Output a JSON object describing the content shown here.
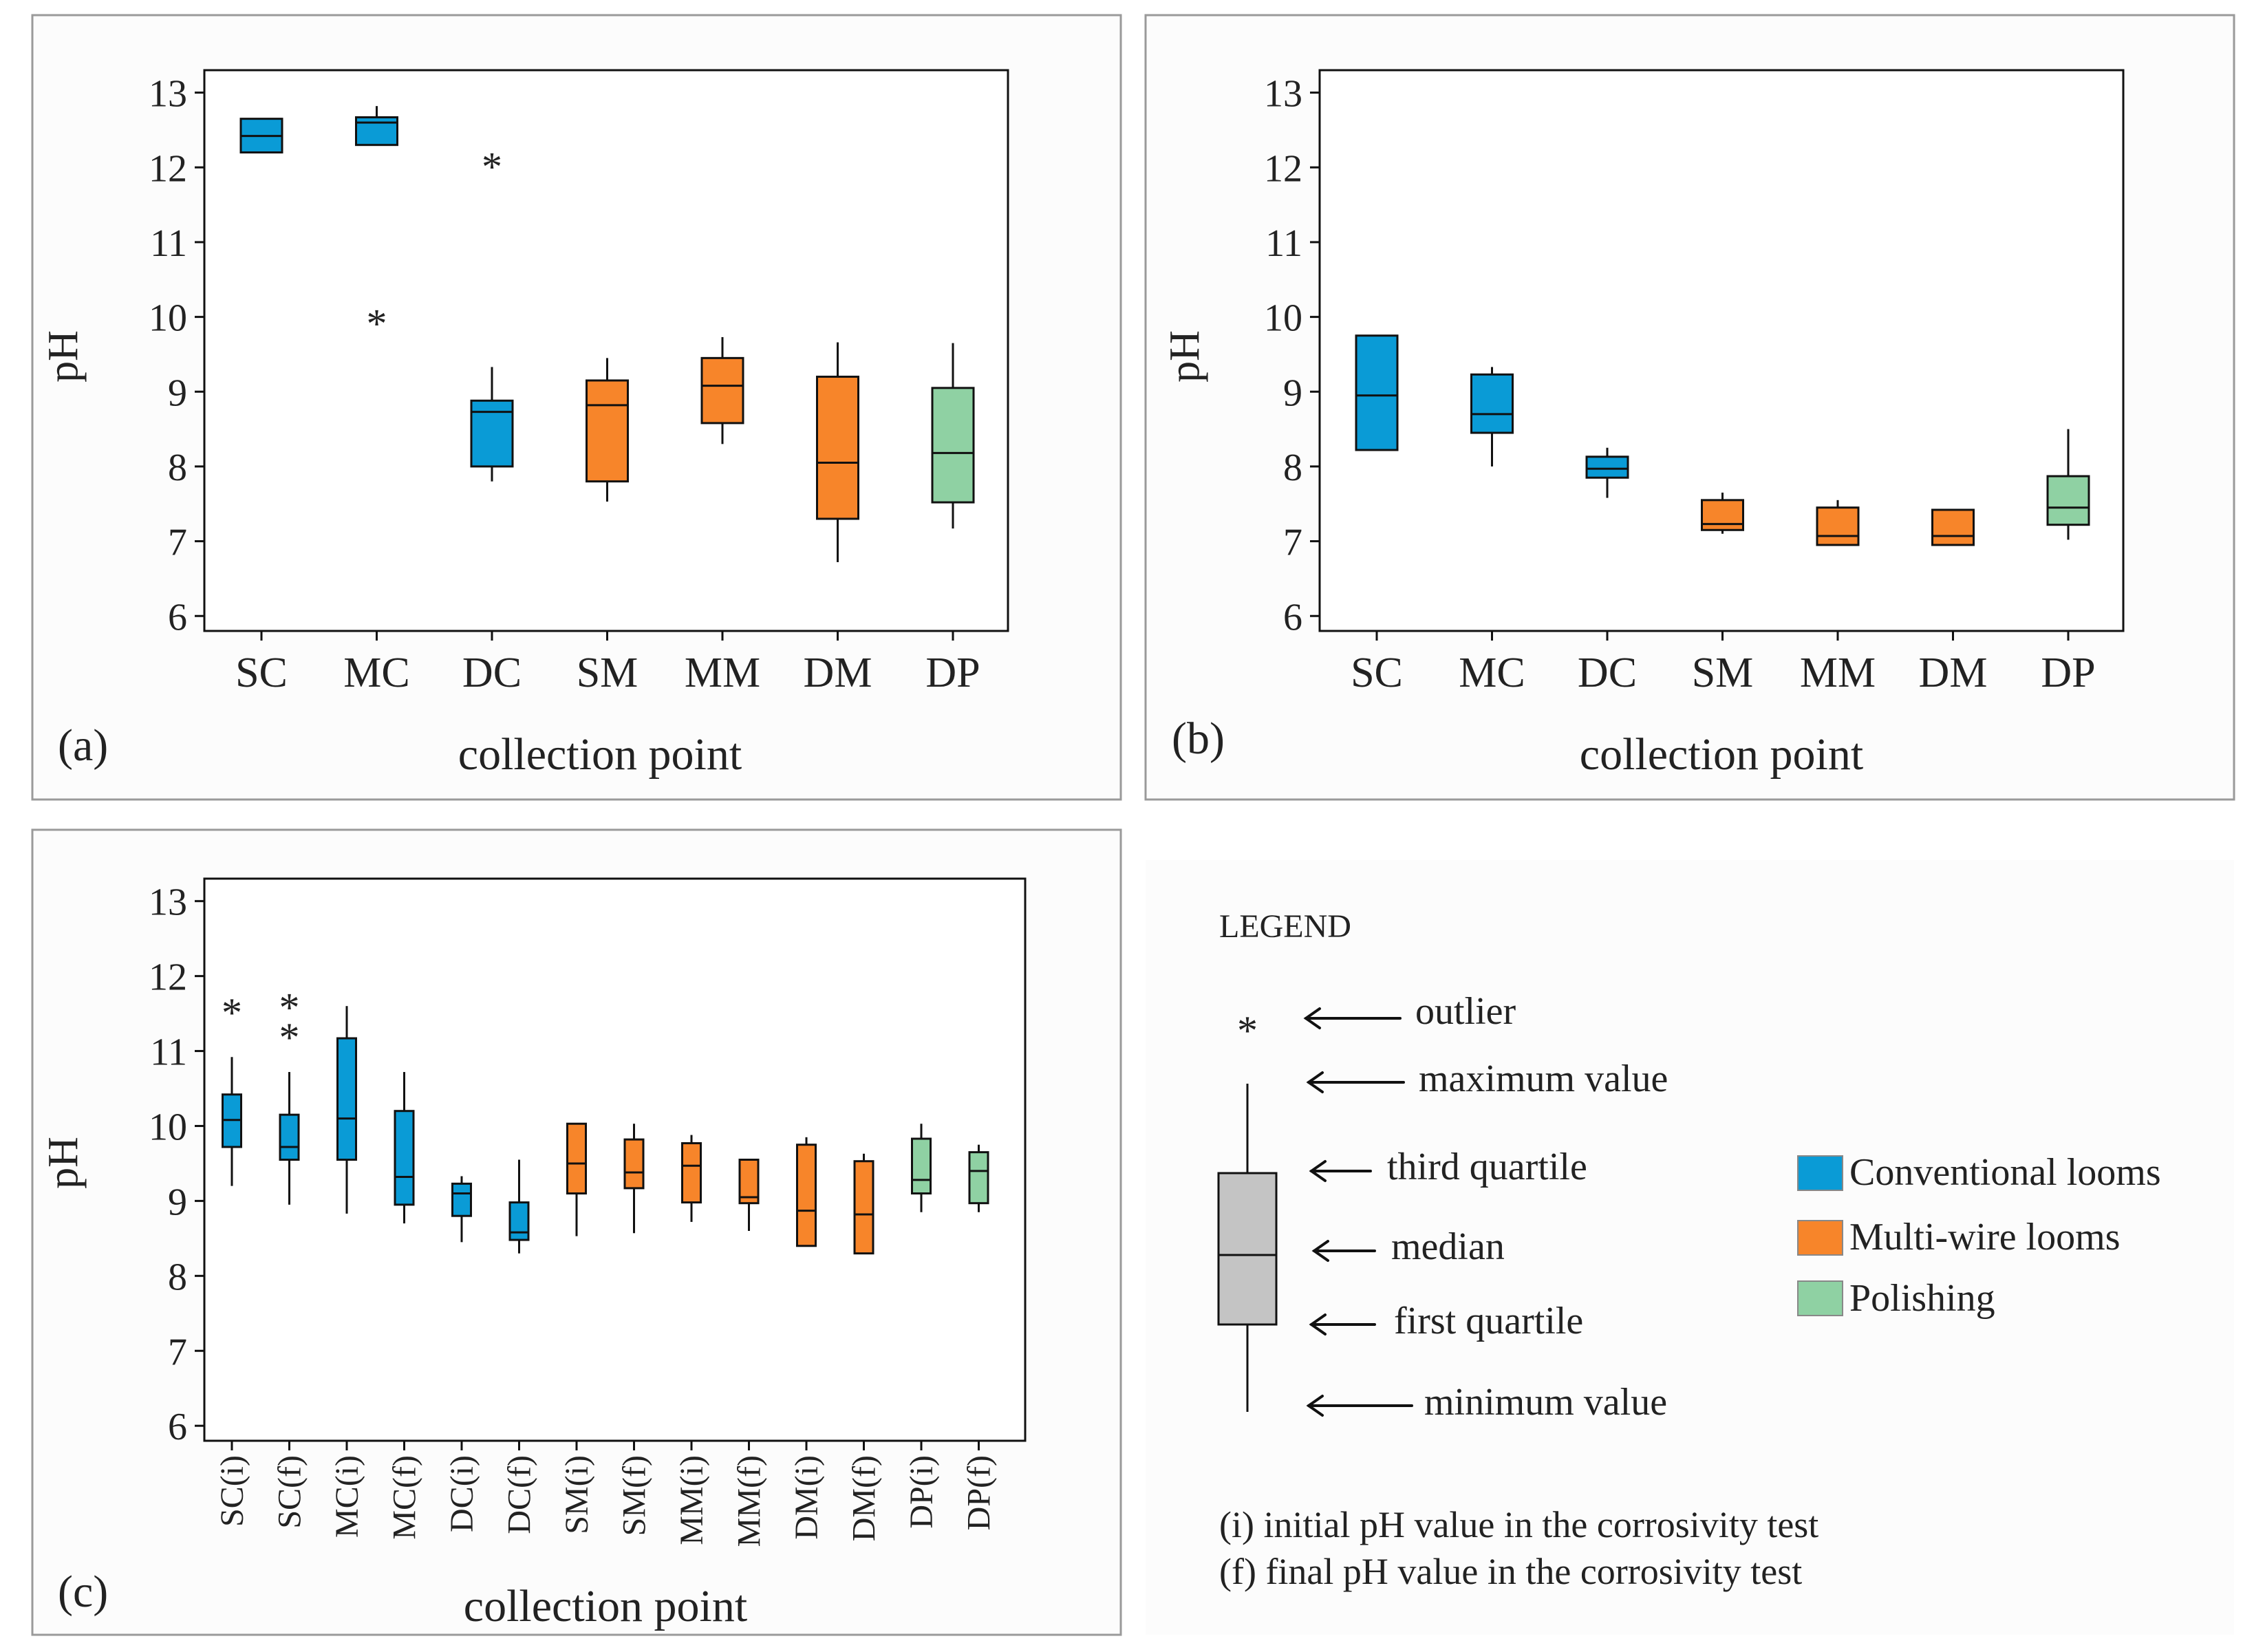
{
  "colors": {
    "conventional": "#0a9bd6",
    "multiwire": "#f7852a",
    "polishing": "#8fd1a3",
    "legend_box": "#c4c4c4",
    "frame": "#9a9a9a"
  },
  "chart_data": [
    {
      "type": "box",
      "panel_label": "(a)",
      "ylabel": "pH",
      "xlabel": "collection point",
      "ylim": [
        5.8,
        13.3
      ],
      "yticks": [
        "6",
        "7",
        "8",
        "9",
        "10",
        "11",
        "12",
        "13"
      ],
      "boxes": [
        {
          "label": "SC",
          "group": "conventional",
          "min": 12.2,
          "q1": 12.2,
          "median": 12.42,
          "q3": 12.65,
          "max": 12.65,
          "outliers": []
        },
        {
          "label": "MC",
          "group": "conventional",
          "min": 12.3,
          "q1": 12.3,
          "median": 12.6,
          "q3": 12.67,
          "max": 12.82,
          "outliers": [
            10.0
          ]
        },
        {
          "label": "DC",
          "group": "conventional",
          "min": 7.8,
          "q1": 8.0,
          "median": 8.73,
          "q3": 8.88,
          "max": 9.33,
          "outliers": [
            12.1
          ]
        },
        {
          "label": "SM",
          "group": "multiwire",
          "min": 7.53,
          "q1": 7.8,
          "median": 8.82,
          "q3": 9.15,
          "max": 9.45,
          "outliers": []
        },
        {
          "label": "MM",
          "group": "multiwire",
          "min": 8.3,
          "q1": 8.58,
          "median": 9.08,
          "q3": 9.45,
          "max": 9.73,
          "outliers": []
        },
        {
          "label": "DM",
          "group": "multiwire",
          "min": 6.72,
          "q1": 7.3,
          "median": 8.05,
          "q3": 9.2,
          "max": 9.66,
          "outliers": []
        },
        {
          "label": "DP",
          "group": "polishing",
          "min": 7.17,
          "q1": 7.52,
          "median": 8.18,
          "q3": 9.05,
          "max": 9.65,
          "outliers": []
        }
      ]
    },
    {
      "type": "box",
      "panel_label": "(b)",
      "ylabel": "pH",
      "xlabel": "collection point",
      "ylim": [
        5.8,
        13.3
      ],
      "yticks": [
        "6",
        "7",
        "8",
        "9",
        "10",
        "11",
        "12",
        "13"
      ],
      "boxes": [
        {
          "label": "SC",
          "group": "conventional",
          "min": 8.22,
          "q1": 8.22,
          "median": 8.95,
          "q3": 9.75,
          "max": 9.75,
          "outliers": []
        },
        {
          "label": "MC",
          "group": "conventional",
          "min": 8.0,
          "q1": 8.45,
          "median": 8.7,
          "q3": 9.23,
          "max": 9.33,
          "outliers": []
        },
        {
          "label": "DC",
          "group": "conventional",
          "min": 7.58,
          "q1": 7.85,
          "median": 7.97,
          "q3": 8.13,
          "max": 8.25,
          "outliers": []
        },
        {
          "label": "SM",
          "group": "multiwire",
          "min": 7.1,
          "q1": 7.15,
          "median": 7.23,
          "q3": 7.55,
          "max": 7.65,
          "outliers": []
        },
        {
          "label": "MM",
          "group": "multiwire",
          "min": 6.95,
          "q1": 6.95,
          "median": 7.07,
          "q3": 7.45,
          "max": 7.55,
          "outliers": []
        },
        {
          "label": "DM",
          "group": "multiwire",
          "min": 6.95,
          "q1": 6.95,
          "median": 7.07,
          "q3": 7.42,
          "max": 7.42,
          "outliers": []
        },
        {
          "label": "DP",
          "group": "polishing",
          "min": 7.02,
          "q1": 7.22,
          "median": 7.45,
          "q3": 7.87,
          "max": 8.5,
          "outliers": []
        }
      ]
    },
    {
      "type": "box",
      "panel_label": "(c)",
      "ylabel": "pH",
      "xlabel": "collection point",
      "ylim": [
        5.8,
        13.3
      ],
      "yticks": [
        "6",
        "7",
        "8",
        "9",
        "10",
        "11",
        "12",
        "13"
      ],
      "boxes": [
        {
          "label": "SC(i)",
          "group": "conventional",
          "min": 9.2,
          "q1": 9.72,
          "median": 10.08,
          "q3": 10.42,
          "max": 10.92,
          "outliers": [
            11.6
          ]
        },
        {
          "label": "SC(f)",
          "group": "conventional",
          "min": 8.95,
          "q1": 9.55,
          "median": 9.72,
          "q3": 10.15,
          "max": 10.72,
          "outliers": [
            11.67,
            11.27
          ]
        },
        {
          "label": "MC(i)",
          "group": "conventional",
          "min": 8.83,
          "q1": 9.55,
          "median": 10.1,
          "q3": 11.17,
          "max": 11.6,
          "outliers": []
        },
        {
          "label": "MC(f)",
          "group": "conventional",
          "min": 8.7,
          "q1": 8.95,
          "median": 9.32,
          "q3": 10.2,
          "max": 10.72,
          "outliers": []
        },
        {
          "label": "DC(i)",
          "group": "conventional",
          "min": 8.45,
          "q1": 8.8,
          "median": 9.1,
          "q3": 9.23,
          "max": 9.33,
          "outliers": []
        },
        {
          "label": "DC(f)",
          "group": "conventional",
          "min": 8.3,
          "q1": 8.48,
          "median": 8.58,
          "q3": 8.98,
          "max": 9.55,
          "outliers": []
        },
        {
          "label": "SM(i)",
          "group": "multiwire",
          "min": 8.53,
          "q1": 9.1,
          "median": 9.5,
          "q3": 10.03,
          "max": 10.03,
          "outliers": []
        },
        {
          "label": "SM(f)",
          "group": "multiwire",
          "min": 8.57,
          "q1": 9.17,
          "median": 9.38,
          "q3": 9.82,
          "max": 10.03,
          "outliers": []
        },
        {
          "label": "MM(i)",
          "group": "multiwire",
          "min": 8.72,
          "q1": 8.98,
          "median": 9.47,
          "q3": 9.77,
          "max": 9.88,
          "outliers": []
        },
        {
          "label": "MM(f)",
          "group": "multiwire",
          "min": 8.6,
          "q1": 8.97,
          "median": 9.05,
          "q3": 9.55,
          "max": 9.55,
          "outliers": []
        },
        {
          "label": "DM(i)",
          "group": "multiwire",
          "min": 8.4,
          "q1": 8.4,
          "median": 8.87,
          "q3": 9.75,
          "max": 9.85,
          "outliers": []
        },
        {
          "label": "DM(f)",
          "group": "multiwire",
          "min": 8.3,
          "q1": 8.3,
          "median": 8.82,
          "q3": 9.53,
          "max": 9.63,
          "outliers": []
        },
        {
          "label": "DP(i)",
          "group": "polishing",
          "min": 8.85,
          "q1": 9.1,
          "median": 9.28,
          "q3": 9.83,
          "max": 10.03,
          "outliers": []
        },
        {
          "label": "DP(f)",
          "group": "polishing",
          "min": 8.85,
          "q1": 8.97,
          "median": 9.4,
          "q3": 9.65,
          "max": 9.75,
          "outliers": []
        }
      ]
    }
  ],
  "legend": {
    "title": "LEGEND",
    "outlier_symbol": "*",
    "outlier": "outlier",
    "maximum": "maximum value",
    "third_quartile": "third quartile",
    "median": "median",
    "first_quartile": "first quartile",
    "minimum": "minimum value",
    "groups": [
      {
        "key": "conventional",
        "label": "Conventional looms"
      },
      {
        "key": "multiwire",
        "label": "Multi-wire looms"
      },
      {
        "key": "polishing",
        "label": "Polishing"
      }
    ],
    "note_i": "(i) initial pH value in the corrosivity test",
    "note_f": "(f) final pH value in the corrosivity test"
  }
}
